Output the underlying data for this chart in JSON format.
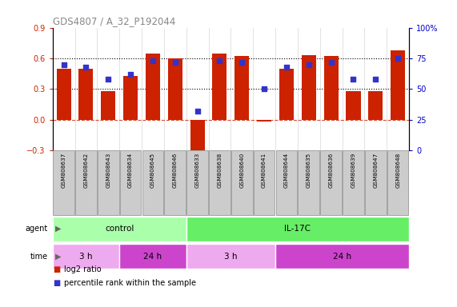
{
  "title": "GDS4807 / A_32_P192044",
  "samples": [
    "GSM808637",
    "GSM808642",
    "GSM808643",
    "GSM808634",
    "GSM808645",
    "GSM808646",
    "GSM808633",
    "GSM808638",
    "GSM808640",
    "GSM808641",
    "GSM808644",
    "GSM808635",
    "GSM808636",
    "GSM808639",
    "GSM808647",
    "GSM808648"
  ],
  "log2_ratio": [
    0.5,
    0.5,
    0.28,
    0.43,
    0.65,
    0.6,
    -0.38,
    0.65,
    0.62,
    -0.02,
    0.5,
    0.63,
    0.62,
    0.28,
    0.28,
    0.68
  ],
  "percentile": [
    70,
    68,
    58,
    62,
    73,
    72,
    32,
    73,
    72,
    50,
    68,
    70,
    72,
    58,
    58,
    75
  ],
  "bar_color": "#cc2200",
  "dot_color": "#3333cc",
  "ylim_left": [
    -0.3,
    0.9
  ],
  "ylim_right": [
    0,
    100
  ],
  "yticks_left": [
    -0.3,
    0.0,
    0.3,
    0.6,
    0.9
  ],
  "yticks_right": [
    0,
    25,
    50,
    75,
    100
  ],
  "yticklabels_right": [
    "0",
    "25",
    "50",
    "75",
    "100%"
  ],
  "hlines": [
    0.3,
    0.6
  ],
  "zero_line": 0.0,
  "agent_groups": [
    {
      "label": "control",
      "start": 0,
      "end": 6,
      "color": "#aaffaa"
    },
    {
      "label": "IL-17C",
      "start": 6,
      "end": 16,
      "color": "#66ee66"
    }
  ],
  "time_groups": [
    {
      "label": "3 h",
      "start": 0,
      "end": 3,
      "color": "#eeaaee"
    },
    {
      "label": "24 h",
      "start": 3,
      "end": 6,
      "color": "#cc44cc"
    },
    {
      "label": "3 h",
      "start": 6,
      "end": 10,
      "color": "#eeaaee"
    },
    {
      "label": "24 h",
      "start": 10,
      "end": 16,
      "color": "#cc44cc"
    }
  ],
  "legend_items": [
    {
      "color": "#cc2200",
      "label": "log2 ratio"
    },
    {
      "color": "#3333cc",
      "label": "percentile rank within the sample"
    }
  ],
  "bg_color": "#ffffff",
  "tick_label_color_left": "#cc2200",
  "tick_label_color_right": "#0000cc",
  "sample_box_color": "#cccccc",
  "sample_box_edge": "#888888"
}
